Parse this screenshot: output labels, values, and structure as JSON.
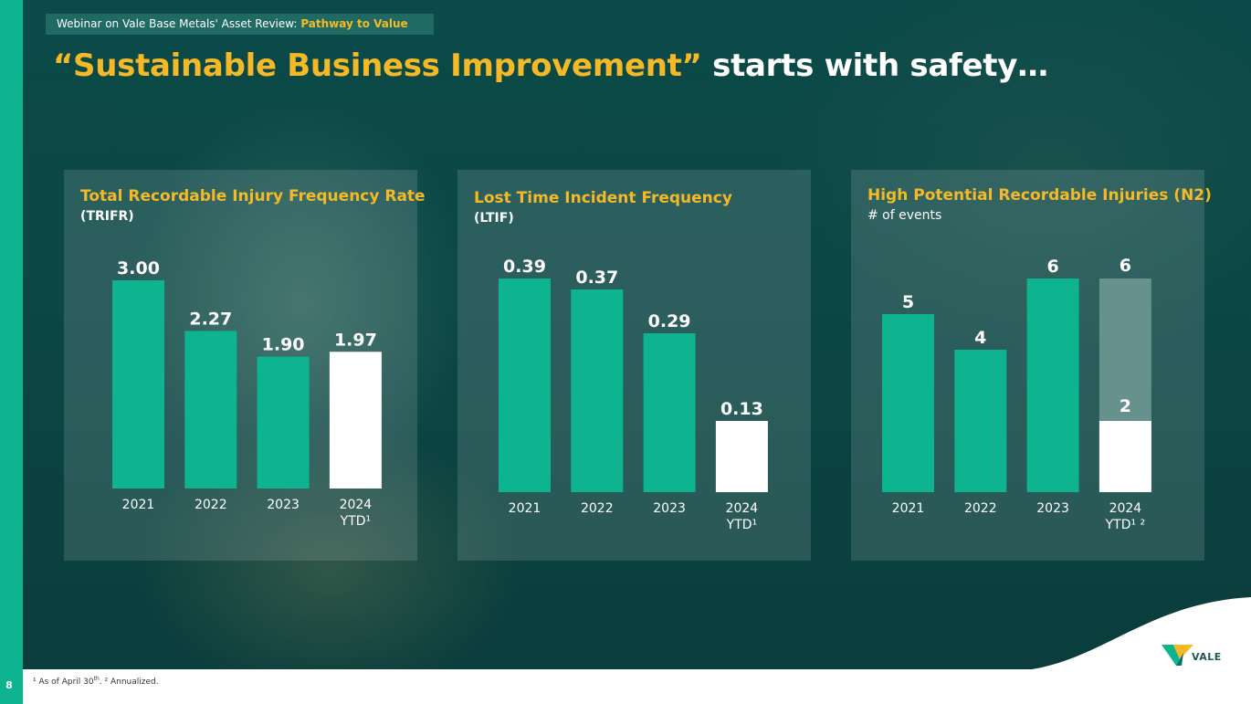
{
  "header": {
    "webinar_prefix": "Webinar on Vale Base Metals' Asset Review:",
    "webinar_highlight": "Pathway to Value",
    "headline_yellow": "“Sustainable Business Improvement”",
    "headline_white": " starts with safety…"
  },
  "page_number": "8",
  "footnote": {
    "part1": "¹ As of April 30",
    "sup": "th",
    "part2": ". ² Annualized."
  },
  "brand": {
    "logo_text": "VALE"
  },
  "colors": {
    "teal": "#0db48f",
    "yellow": "#f5b928",
    "white": "#ffffff",
    "gray_bar": "#66918c"
  },
  "chart_data": [
    {
      "type": "bar",
      "title": "Total Recordable Injury Frequency Rate",
      "subtitle": "(TRIFR)",
      "categories": [
        "2021",
        "2022",
        "2023",
        "2024 YTD¹"
      ],
      "category_lines": [
        [
          "2021"
        ],
        [
          "2022"
        ],
        [
          "2023"
        ],
        [
          "2024",
          "YTD¹"
        ]
      ],
      "values": [
        3.0,
        2.27,
        1.9,
        1.97
      ],
      "labels": [
        "3.00",
        "2.27",
        "1.90",
        "1.97"
      ],
      "highlight": [
        false,
        false,
        false,
        true
      ],
      "ylim": [
        0,
        3.0
      ]
    },
    {
      "type": "bar",
      "title": "Lost Time Incident Frequency",
      "subtitle": "(LTIF)",
      "categories": [
        "2021",
        "2022",
        "2023",
        "2024 YTD¹"
      ],
      "category_lines": [
        [
          "2021"
        ],
        [
          "2022"
        ],
        [
          "2023"
        ],
        [
          "2024",
          "YTD¹"
        ]
      ],
      "values": [
        0.39,
        0.37,
        0.29,
        0.13
      ],
      "labels": [
        "0.39",
        "0.37",
        "0.29",
        "0.13"
      ],
      "highlight": [
        false,
        false,
        false,
        true
      ],
      "ylim": [
        0,
        0.39
      ]
    },
    {
      "type": "bar",
      "title": "High Potential Recordable Injuries (N2)",
      "subtitle": "# of events",
      "categories": [
        "2021",
        "2022",
        "2023",
        "2024 YTD¹ ²"
      ],
      "category_lines": [
        [
          "2021"
        ],
        [
          "2022"
        ],
        [
          "2023"
        ],
        [
          "2024",
          "YTD¹ ²"
        ]
      ],
      "values": [
        5,
        4,
        6,
        2
      ],
      "labels": [
        "5",
        "4",
        "6",
        "2"
      ],
      "highlight": [
        false,
        false,
        false,
        true
      ],
      "annualized_value": 6,
      "annualized_label": "6",
      "ylim": [
        0,
        6
      ]
    }
  ]
}
